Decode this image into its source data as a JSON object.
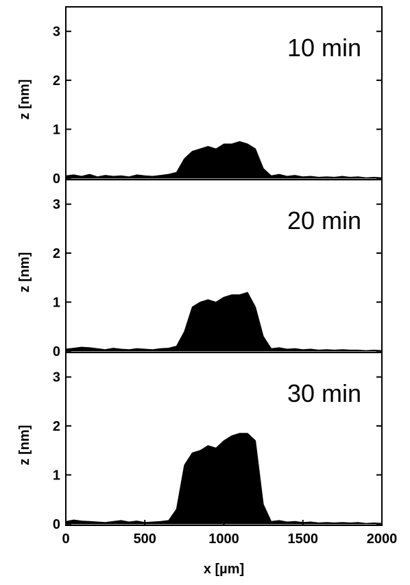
{
  "chart_data": [
    {
      "type": "area",
      "annotation": "10 min",
      "ylabel": "z [nm]",
      "xlim": [
        0,
        2000
      ],
      "ylim": [
        -0.03,
        3.5
      ],
      "yticks": [
        0,
        1,
        2,
        3
      ],
      "color": "#000000",
      "x": [
        0,
        50,
        100,
        150,
        200,
        250,
        300,
        350,
        400,
        450,
        500,
        550,
        600,
        650,
        700,
        750,
        800,
        850,
        900,
        950,
        1000,
        1050,
        1100,
        1150,
        1200,
        1250,
        1300,
        1350,
        1400,
        1450,
        1500,
        1550,
        1600,
        1650,
        1700,
        1750,
        1800,
        1850,
        1900,
        1950,
        2000
      ],
      "values": [
        0.05,
        0.07,
        0.04,
        0.08,
        0.03,
        0.06,
        0.04,
        0.05,
        0.03,
        0.07,
        0.05,
        0.04,
        0.06,
        0.08,
        0.12,
        0.4,
        0.55,
        0.6,
        0.65,
        0.6,
        0.7,
        0.7,
        0.75,
        0.7,
        0.6,
        0.2,
        0.05,
        0.08,
        0.04,
        0.06,
        0.03,
        0.04,
        0.02,
        0.03,
        0.02,
        0.04,
        0.02,
        0.03,
        0.01,
        0.02,
        0.01
      ]
    },
    {
      "type": "area",
      "annotation": "20 min",
      "ylabel": "z [nm]",
      "xlim": [
        0,
        2000
      ],
      "ylim": [
        -0.03,
        3.5
      ],
      "yticks": [
        0,
        1,
        2,
        3
      ],
      "color": "#000000",
      "x": [
        0,
        50,
        100,
        150,
        200,
        250,
        300,
        350,
        400,
        450,
        500,
        550,
        600,
        650,
        700,
        750,
        800,
        850,
        900,
        950,
        1000,
        1050,
        1100,
        1150,
        1200,
        1250,
        1300,
        1350,
        1400,
        1450,
        1500,
        1550,
        1600,
        1650,
        1700,
        1750,
        1800,
        1850,
        1900,
        1950,
        2000
      ],
      "values": [
        0.04,
        0.06,
        0.08,
        0.07,
        0.05,
        0.03,
        0.06,
        0.04,
        0.03,
        0.05,
        0.04,
        0.03,
        0.05,
        0.06,
        0.1,
        0.4,
        0.9,
        1.0,
        1.05,
        1.0,
        1.1,
        1.15,
        1.15,
        1.2,
        0.9,
        0.3,
        0.05,
        0.07,
        0.04,
        0.05,
        0.03,
        0.04,
        0.02,
        0.03,
        0.02,
        0.03,
        0.02,
        0.02,
        0.01,
        0.02,
        0.01
      ]
    },
    {
      "type": "area",
      "annotation": "30 min",
      "ylabel": "z [nm]",
      "xlabel": "x [µm]",
      "xlim": [
        0,
        2000
      ],
      "xticks": [
        0,
        500,
        1000,
        1500,
        2000
      ],
      "ylim": [
        -0.03,
        3.5
      ],
      "yticks": [
        0,
        1,
        2,
        3
      ],
      "color": "#000000",
      "x": [
        0,
        50,
        100,
        150,
        200,
        250,
        300,
        350,
        400,
        450,
        500,
        550,
        600,
        650,
        700,
        750,
        800,
        850,
        900,
        950,
        1000,
        1050,
        1100,
        1150,
        1200,
        1250,
        1300,
        1350,
        1400,
        1450,
        1500,
        1550,
        1600,
        1650,
        1700,
        1750,
        1800,
        1850,
        1900,
        1950,
        2000
      ],
      "values": [
        0.05,
        0.08,
        0.06,
        0.05,
        0.04,
        0.03,
        0.05,
        0.07,
        0.04,
        0.06,
        0.03,
        0.04,
        0.05,
        0.07,
        0.3,
        1.2,
        1.45,
        1.5,
        1.6,
        1.55,
        1.7,
        1.8,
        1.85,
        1.85,
        1.7,
        0.4,
        0.05,
        0.07,
        0.04,
        0.05,
        0.03,
        0.04,
        0.02,
        0.03,
        0.02,
        0.03,
        0.02,
        0.03,
        0.01,
        0.02,
        0.01
      ]
    }
  ]
}
